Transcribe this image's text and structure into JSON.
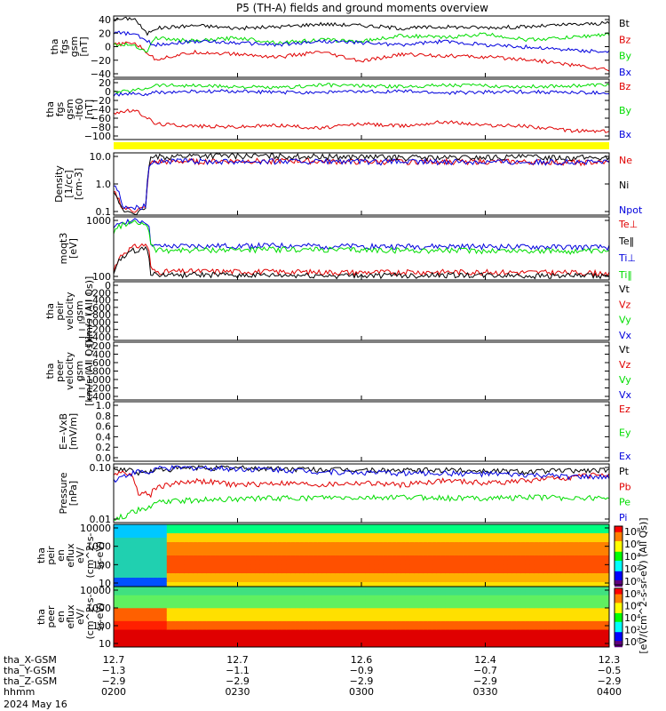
{
  "title": "P5 (TH-A) fields and ground moments overview",
  "date": "2024 May 16",
  "colors": {
    "black": "#000000",
    "red": "#e00000",
    "green": "#00dd00",
    "blue": "#0000dd",
    "yellow": "#ffff00"
  },
  "chart_data": [
    {
      "type": "line",
      "ylabel": [
        "tha",
        "fgs",
        "gsm",
        "[nT]"
      ],
      "yticks": [
        "40",
        "20",
        "0",
        "−20",
        "−40"
      ],
      "ylim": [
        -40,
        45
      ],
      "legend": [
        {
          "name": "Bt",
          "color": "#000000"
        },
        {
          "name": "Bz",
          "color": "#e00000"
        },
        {
          "name": "By",
          "color": "#00dd00"
        },
        {
          "name": "Bx",
          "color": "#0000dd"
        }
      ],
      "x": [
        0,
        5,
        8,
        10,
        15,
        20,
        30,
        40,
        50,
        60,
        70,
        80,
        90,
        100,
        110,
        120
      ],
      "series": [
        {
          "name": "Bt",
          "color": "#000000",
          "values": [
            40,
            42,
            20,
            28,
            30,
            32,
            28,
            30,
            34,
            32,
            28,
            30,
            29,
            30,
            33,
            35
          ]
        },
        {
          "name": "Bz",
          "color": "#e00000",
          "values": [
            5,
            8,
            -5,
            -15,
            -10,
            -5,
            -8,
            -12,
            -5,
            -18,
            -8,
            -10,
            -12,
            -15,
            -22,
            -30
          ]
        },
        {
          "name": "By",
          "color": "#00dd00",
          "values": [
            5,
            5,
            -5,
            15,
            12,
            10,
            15,
            8,
            12,
            10,
            18,
            15,
            20,
            12,
            15,
            20
          ]
        },
        {
          "name": "Bx",
          "color": "#0000dd",
          "values": [
            22,
            20,
            10,
            5,
            8,
            10,
            8,
            5,
            10,
            8,
            5,
            10,
            5,
            2,
            -2,
            -5
          ]
        }
      ]
    },
    {
      "type": "line",
      "ylabel": [
        "tha",
        "fgs",
        "gsm",
        "-lt60",
        "[nT]"
      ],
      "yticks": [
        "20",
        "0",
        "−20",
        "−40",
        "−60",
        "−80",
        "−100"
      ],
      "ylim": [
        -110,
        25
      ],
      "legend": [
        {
          "name": "Bz",
          "color": "#e00000"
        },
        {
          "name": "By",
          "color": "#00dd00"
        },
        {
          "name": "Bx",
          "color": "#0000dd"
        }
      ],
      "x": [
        0,
        5,
        8,
        10,
        20,
        30,
        40,
        50,
        60,
        70,
        80,
        90,
        100,
        110,
        120
      ],
      "series": [
        {
          "name": "Bz",
          "color": "#e00000",
          "values": [
            -50,
            -45,
            -60,
            -75,
            -80,
            -82,
            -78,
            -85,
            -75,
            -80,
            -70,
            -78,
            -80,
            -90,
            -92
          ]
        },
        {
          "name": "By",
          "color": "#00dd00",
          "values": [
            -5,
            0,
            5,
            12,
            10,
            8,
            5,
            12,
            10,
            8,
            12,
            10,
            8,
            10,
            12
          ]
        },
        {
          "name": "Bx",
          "color": "#0000dd",
          "values": [
            -10,
            -8,
            -10,
            -5,
            -3,
            -2,
            -5,
            -4,
            -3,
            -2,
            -6,
            -4,
            -3,
            -5,
            -6
          ]
        }
      ]
    },
    {
      "type": "line",
      "scale": "log",
      "ylabel": [
        "Density",
        "[1/cc]",
        "[cm-3]"
      ],
      "yticks": [
        "10.0",
        "1.0",
        "0.1"
      ],
      "ylim": [
        0.08,
        20
      ],
      "legend": [
        {
          "name": "Ne",
          "color": "#e00000"
        },
        {
          "name": "Ni",
          "color": "#000000"
        },
        {
          "name": "Npot",
          "color": "#0000dd"
        }
      ],
      "x": [
        0,
        2,
        5,
        8,
        9,
        10,
        20,
        40,
        60,
        80,
        100,
        120
      ],
      "series": [
        {
          "name": "Ne",
          "color": "#e00000",
          "values": [
            0.6,
            0.15,
            0.12,
            0.15,
            8,
            9,
            9.5,
            10,
            9,
            9.5,
            9,
            8.5
          ]
        },
        {
          "name": "Ni",
          "color": "#000000",
          "values": [
            0.5,
            0.12,
            0.1,
            0.12,
            12,
            14,
            16,
            15,
            14,
            13,
            14,
            13
          ]
        },
        {
          "name": "Npot",
          "color": "#0000dd",
          "values": [
            1.2,
            0.2,
            0.15,
            0.2,
            9,
            9.5,
            9.5,
            9.5,
            9,
            9.2,
            9,
            8.8
          ]
        }
      ]
    },
    {
      "type": "line",
      "scale": "log",
      "ylabel": [
        "moqt3",
        "[eV]"
      ],
      "yticks": [
        "1000",
        "100"
      ],
      "ylim": [
        20,
        6000
      ],
      "legend": [
        {
          "name": "Te⊥",
          "color": "#e00000"
        },
        {
          "name": "Te‖",
          "color": "#000000"
        },
        {
          "name": "Ti⊥",
          "color": "#0000dd"
        },
        {
          "name": "Ti‖",
          "color": "#00dd00"
        }
      ],
      "x": [
        0,
        2,
        5,
        8,
        9,
        10,
        20,
        40,
        60,
        80,
        100,
        120
      ],
      "series": [
        {
          "name": "Ti⊥",
          "color": "#0000dd",
          "values": [
            1800,
            4000,
            4200,
            4000,
            600,
            420,
            430,
            450,
            420,
            420,
            400,
            380
          ]
        },
        {
          "name": "Ti‖",
          "color": "#00dd00",
          "values": [
            1500,
            3000,
            3500,
            3200,
            500,
            300,
            300,
            320,
            300,
            290,
            280,
            260
          ]
        },
        {
          "name": "Te⊥",
          "color": "#e00000",
          "values": [
            40,
            200,
            400,
            500,
            60,
            42,
            44,
            42,
            40,
            42,
            40,
            38
          ]
        },
        {
          "name": "Te‖",
          "color": "#000000",
          "values": [
            30,
            150,
            300,
            350,
            40,
            32,
            32,
            30,
            30,
            31,
            30,
            29
          ]
        }
      ]
    },
    {
      "type": "line",
      "ylabel": [
        "tha",
        "peir",
        "velocity",
        "gsm",
        "[km/s (All Qs)]"
      ],
      "yticks": [
        "0",
        "−200",
        "−400",
        "−600",
        "−800",
        "−1000",
        "−1200",
        "−1400"
      ],
      "ylim": [
        -1400,
        0
      ],
      "legend": [
        {
          "name": "Vt",
          "color": "#000000"
        },
        {
          "name": "Vz",
          "color": "#e00000"
        },
        {
          "name": "Vy",
          "color": "#00dd00"
        },
        {
          "name": "Vx",
          "color": "#0000dd"
        }
      ],
      "series": []
    },
    {
      "type": "line",
      "ylabel": [
        "tha",
        "peer",
        "velocity",
        "gsm",
        "[km/s (All Qs)]"
      ],
      "yticks": [
        "−200",
        "−400",
        "−600",
        "−800",
        "−1000",
        "−1200",
        "−1400"
      ],
      "ylim": [
        -1400,
        0
      ],
      "legend": [
        {
          "name": "Vt",
          "color": "#000000"
        },
        {
          "name": "Vz",
          "color": "#e00000"
        },
        {
          "name": "Vy",
          "color": "#00dd00"
        },
        {
          "name": "Vx",
          "color": "#0000dd"
        }
      ],
      "series": []
    },
    {
      "type": "line",
      "ylabel": [
        "E=-VxB",
        "[mV/m]"
      ],
      "yticks": [
        "1.0",
        "0.8",
        "0.6",
        "0.4",
        "0.2",
        "0.0"
      ],
      "ylim": [
        0,
        1
      ],
      "legend": [
        {
          "name": "Ez",
          "color": "#e00000"
        },
        {
          "name": "Ey",
          "color": "#00dd00"
        },
        {
          "name": "Ex",
          "color": "#0000dd"
        }
      ],
      "series": []
    },
    {
      "type": "line",
      "scale": "log",
      "ylabel": [
        "Pressure",
        "[nPa]"
      ],
      "yticks": [
        "0.10",
        "0.01"
      ],
      "ylim": [
        0.003,
        0.7
      ],
      "legend": [
        {
          "name": "Pt",
          "color": "#000000"
        },
        {
          "name": "Pb",
          "color": "#e00000"
        },
        {
          "name": "Pe",
          "color": "#00dd00"
        },
        {
          "name": "Pi",
          "color": "#0000dd"
        }
      ],
      "x": [
        0,
        3,
        6,
        9,
        10,
        20,
        30,
        40,
        50,
        60,
        70,
        80,
        90,
        100,
        110,
        120
      ],
      "series": [
        {
          "name": "Pt",
          "color": "#000000",
          "values": [
            0.4,
            0.45,
            0.3,
            0.35,
            0.4,
            0.5,
            0.48,
            0.45,
            0.42,
            0.4,
            0.38,
            0.4,
            0.38,
            0.35,
            0.38,
            0.4
          ]
        },
        {
          "name": "Pb",
          "color": "#e00000",
          "values": [
            0.3,
            0.35,
            0.05,
            0.04,
            0.08,
            0.15,
            0.1,
            0.12,
            0.1,
            0.12,
            0.1,
            0.15,
            0.12,
            0.15,
            0.2,
            0.28
          ]
        },
        {
          "name": "Pe",
          "color": "#00dd00",
          "values": [
            0.004,
            0.006,
            0.01,
            0.012,
            0.02,
            0.025,
            0.028,
            0.03,
            0.03,
            0.03,
            0.032,
            0.03,
            0.03,
            0.032,
            0.03,
            0.03
          ]
        },
        {
          "name": "Pi",
          "color": "#0000dd",
          "values": [
            0.15,
            0.25,
            0.35,
            0.3,
            0.45,
            0.5,
            0.45,
            0.42,
            0.35,
            0.32,
            0.3,
            0.3,
            0.28,
            0.25,
            0.22,
            0.2
          ]
        }
      ]
    },
    {
      "type": "heatmap",
      "ylabel": [
        "tha",
        "peir",
        "en",
        "eflux",
        "eV/",
        "(cm^2-s-",
        "sr-eV)"
      ],
      "yticks": [
        "10000",
        "1000",
        "100",
        "10"
      ]
    },
    {
      "type": "heatmap",
      "ylabel": [
        "tha",
        "peer",
        "en",
        "eflux",
        "eV/",
        "(cm^2-s-",
        "sr-eV)"
      ],
      "yticks": [
        "10000",
        "1000",
        "100",
        "10"
      ]
    }
  ],
  "colorbar": {
    "label": "[eV/(cm^2-s-sr-eV) (All Qs)]",
    "upper_ticks": [
      "10⁸",
      "10⁶",
      "10⁴",
      "10²",
      "10⁰"
    ],
    "lower_ticks": [
      "10⁸",
      "10⁶",
      "10⁴",
      "10²",
      "10⁰"
    ]
  },
  "xaxis": {
    "rows": [
      {
        "label": "tha_X-GSM",
        "values": [
          "12.7",
          "12.7",
          "12.6",
          "12.4",
          "12.3"
        ]
      },
      {
        "label": "tha_Y-GSM",
        "values": [
          "−1.3",
          "−1.1",
          "−0.9",
          "−0.7",
          "−0.5"
        ]
      },
      {
        "label": "tha_Z-GSM",
        "values": [
          "−2.9",
          "−2.9",
          "−2.9",
          "−2.9",
          "−2.9"
        ]
      },
      {
        "label": "hhmm",
        "values": [
          "0200",
          "0230",
          "0300",
          "0330",
          "0400"
        ]
      }
    ]
  }
}
